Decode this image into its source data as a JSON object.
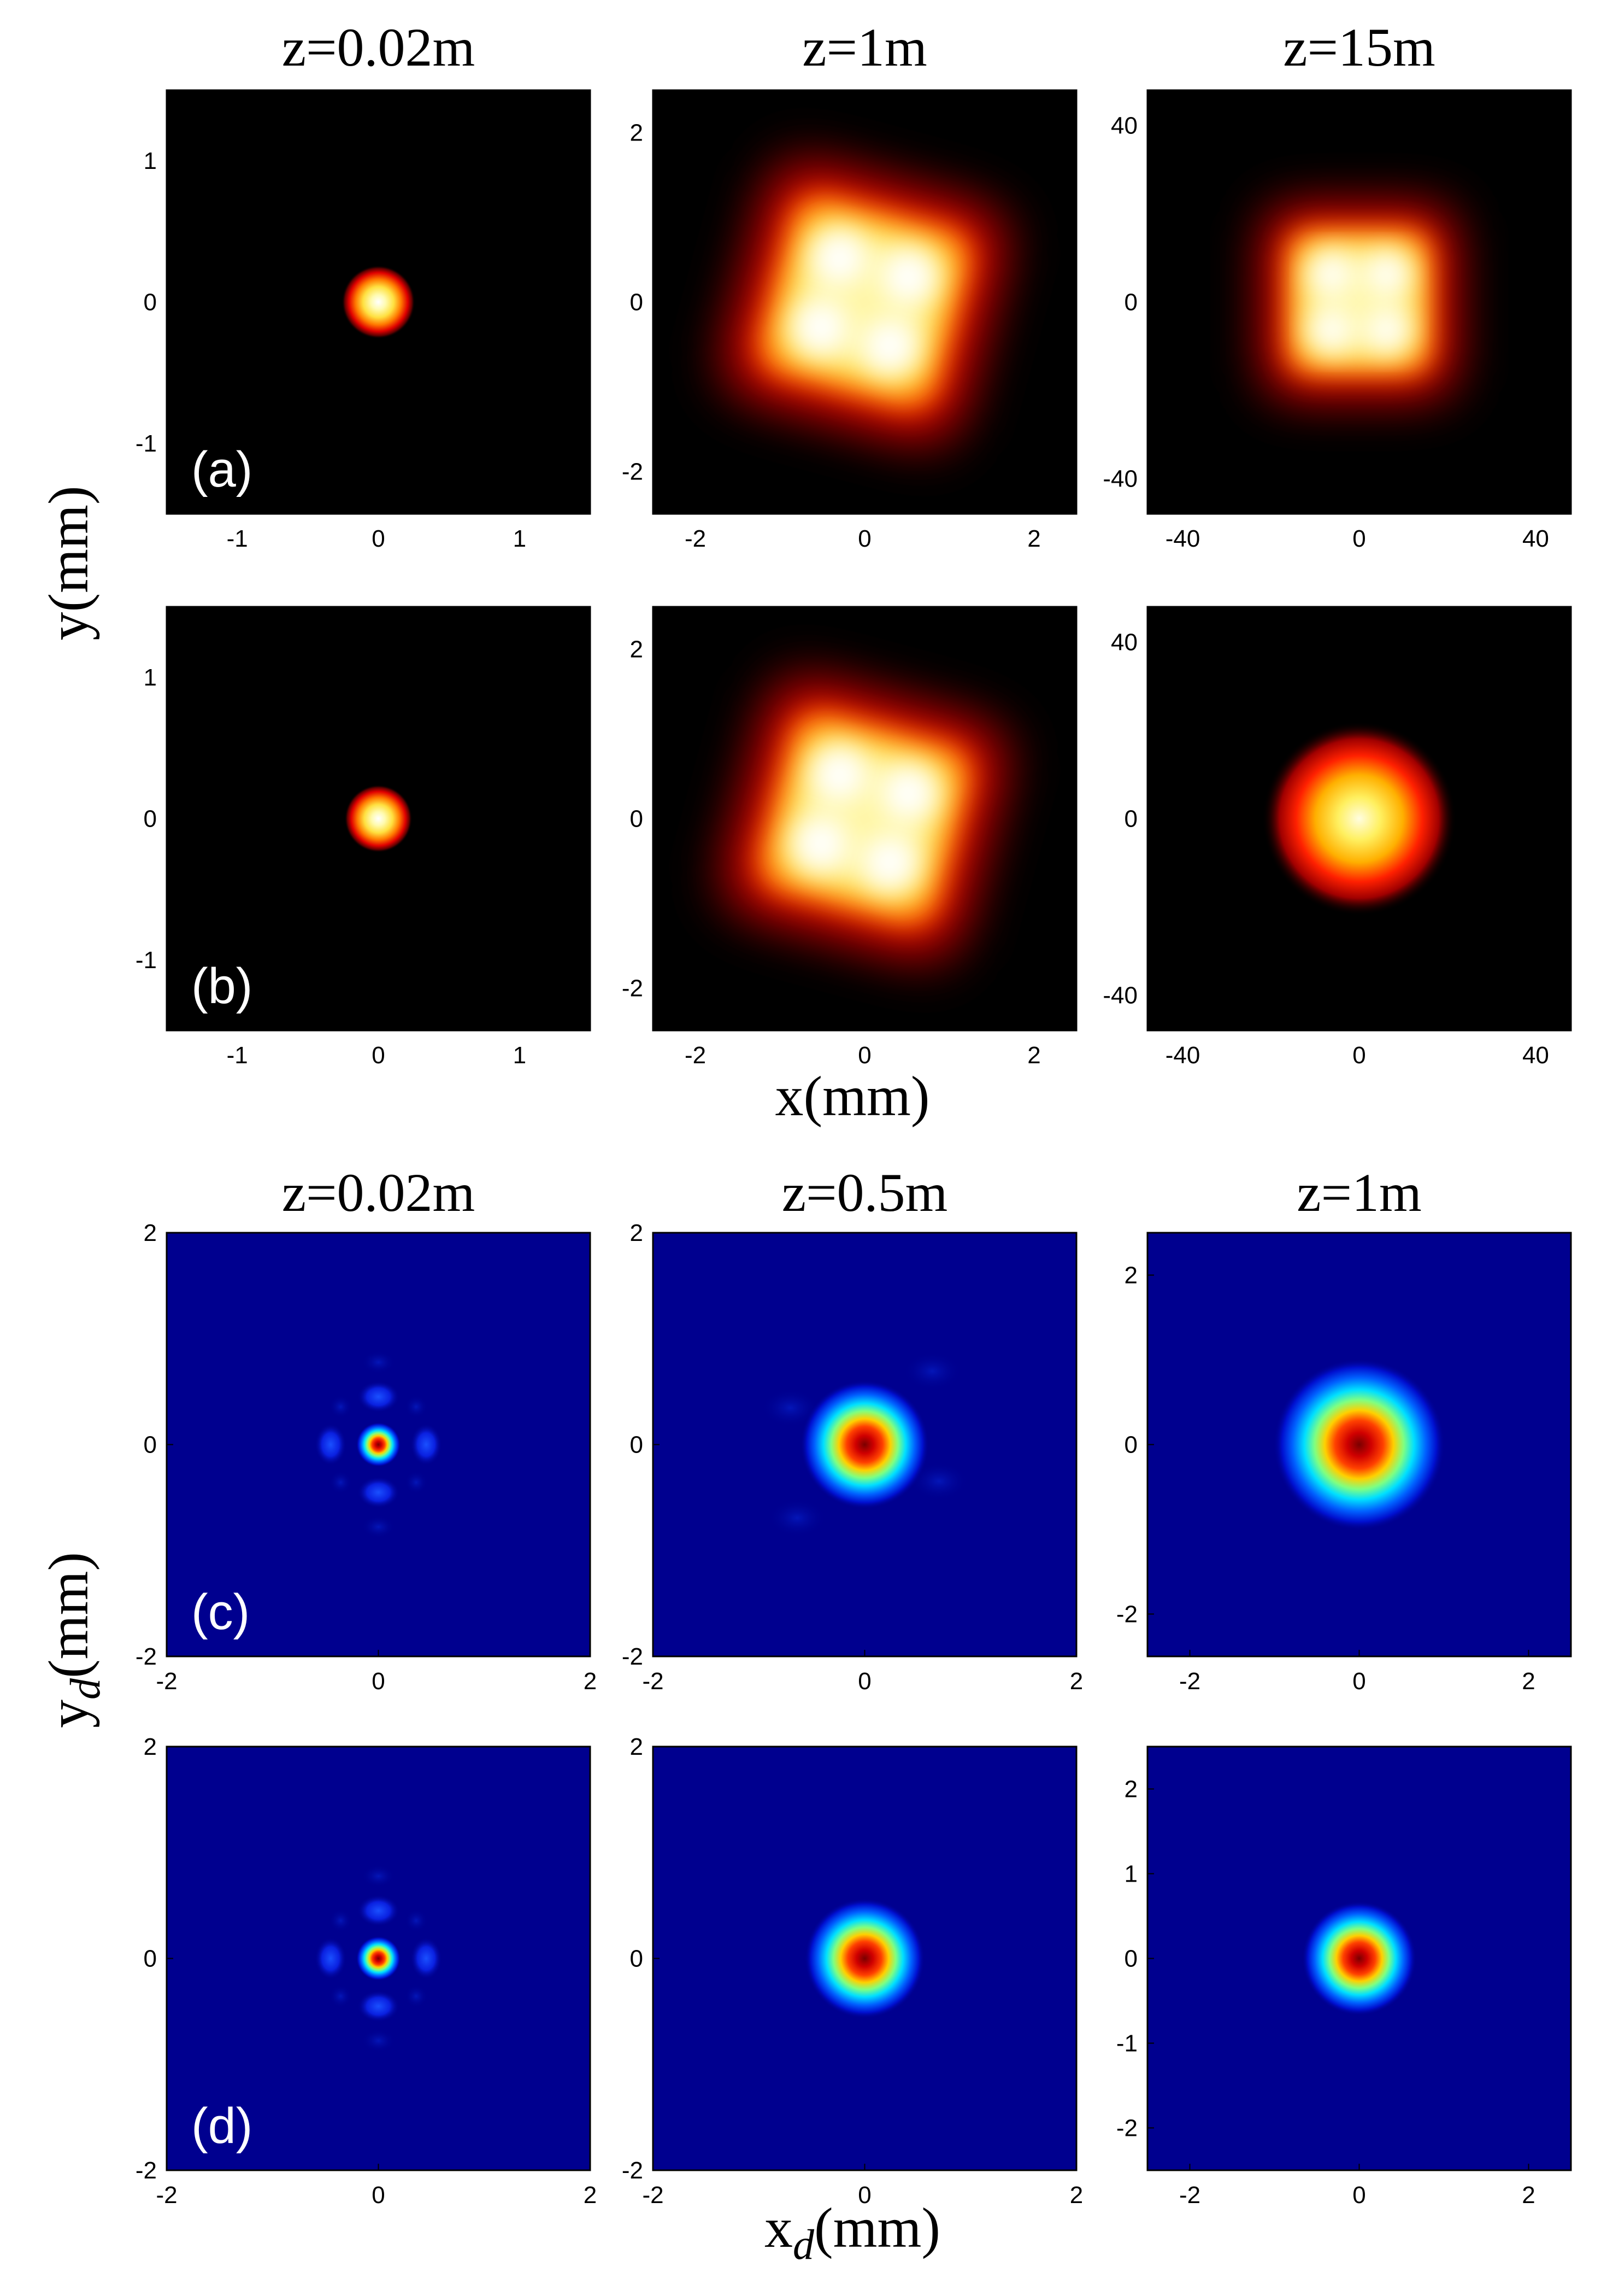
{
  "figure": {
    "upper_ylabel": "y(mm)",
    "upper_xlabel": "x(mm)",
    "lower_ylabel_main": "y",
    "lower_ylabel_sub": "d",
    "lower_ylabel_unit": "(mm)",
    "lower_xlabel_main": "x",
    "lower_xlabel_sub": "d",
    "lower_xlabel_unit": "(mm)"
  },
  "colors": {
    "hot_background": "#000000",
    "hot_ramp": [
      "#000000",
      "#8a0000",
      "#ff0000",
      "#ff8c00",
      "#ffff40",
      "#ffffff"
    ],
    "jet_background": "#00008f",
    "jet_ramp": [
      "#00008f",
      "#0000ff",
      "#00ffff",
      "#ffff00",
      "#ff0000",
      "#800000"
    ]
  },
  "chart_data": [
    {
      "type": "heatmap",
      "row": "a",
      "panel_label": "(a)",
      "title": "z=0.02m",
      "colormap": "hot",
      "xlim": [
        -1.5,
        1.5
      ],
      "ylim": [
        -1.5,
        1.5
      ],
      "xticks": [
        "-1",
        "0",
        "1"
      ],
      "xtick_values": [
        -1,
        0,
        1
      ],
      "yticks": [
        "1",
        "0",
        "-1"
      ],
      "ytick_values": [
        1,
        0,
        -1
      ],
      "pattern": {
        "shape": "gaussian",
        "center": [
          0,
          0
        ],
        "width": 0.26
      }
    },
    {
      "type": "heatmap",
      "row": "a",
      "title": "z=1m",
      "colormap": "hot",
      "xlim": [
        -2.5,
        2.5
      ],
      "ylim": [
        -2.5,
        2.5
      ],
      "xticks": [
        "-2",
        "0",
        "2"
      ],
      "xtick_values": [
        -2,
        0,
        2
      ],
      "yticks": [
        "2",
        "0",
        "-2"
      ],
      "ytick_values": [
        2,
        0,
        -2
      ],
      "pattern": {
        "shape": "rotated-square-four-lobe",
        "center": [
          0,
          0
        ],
        "half_size": 1.0,
        "rotation_deg": 15
      }
    },
    {
      "type": "heatmap",
      "row": "a",
      "title": "z=15m",
      "colormap": "hot",
      "xlim": [
        -48,
        48
      ],
      "ylim": [
        -48,
        48
      ],
      "xticks": [
        "-40",
        "0",
        "40"
      ],
      "xtick_values": [
        -40,
        0,
        40
      ],
      "yticks": [
        "40",
        "0",
        "-40"
      ],
      "ytick_values": [
        40,
        0,
        -40
      ],
      "pattern": {
        "shape": "square-four-lobe",
        "center": [
          0,
          0
        ],
        "half_size": 15
      }
    },
    {
      "type": "heatmap",
      "row": "b",
      "panel_label": "(b)",
      "colormap": "hot",
      "xlim": [
        -1.5,
        1.5
      ],
      "ylim": [
        -1.5,
        1.5
      ],
      "xticks": [
        "-1",
        "0",
        "1"
      ],
      "xtick_values": [
        -1,
        0,
        1
      ],
      "yticks": [
        "1",
        "0",
        "-1"
      ],
      "ytick_values": [
        1,
        0,
        -1
      ],
      "pattern": {
        "shape": "gaussian",
        "center": [
          0,
          0
        ],
        "width": 0.24
      }
    },
    {
      "type": "heatmap",
      "row": "b",
      "colormap": "hot",
      "xlim": [
        -2.5,
        2.5
      ],
      "ylim": [
        -2.5,
        2.5
      ],
      "xticks": [
        "-2",
        "0",
        "2"
      ],
      "xtick_values": [
        -2,
        0,
        2
      ],
      "yticks": [
        "2",
        "0",
        "-2"
      ],
      "ytick_values": [
        2,
        0,
        -2
      ],
      "pattern": {
        "shape": "rotated-square-four-lobe",
        "center": [
          0,
          0
        ],
        "half_size": 1.0,
        "rotation_deg": 15
      }
    },
    {
      "type": "heatmap",
      "row": "b",
      "colormap": "hot",
      "xlim": [
        -48,
        48
      ],
      "ylim": [
        -48,
        48
      ],
      "xticks": [
        "-40",
        "0",
        "40"
      ],
      "xtick_values": [
        -40,
        0,
        40
      ],
      "yticks": [
        "40",
        "0",
        "-40"
      ],
      "ytick_values": [
        40,
        0,
        -40
      ],
      "pattern": {
        "shape": "gaussian",
        "center": [
          0,
          0
        ],
        "width": 22
      }
    },
    {
      "type": "heatmap",
      "row": "c",
      "panel_label": "(c)",
      "title": "z=0.02m",
      "colormap": "jet",
      "xlim": [
        -2,
        2
      ],
      "ylim": [
        -2,
        2
      ],
      "xticks": [
        "-2",
        "0",
        "2"
      ],
      "xtick_values": [
        -2,
        0,
        2
      ],
      "yticks": [
        "2",
        "0",
        "-2"
      ],
      "ytick_values": [
        2,
        0,
        -2
      ],
      "pattern": {
        "shape": "central-peak-with-sidelobes",
        "center": [
          0,
          0
        ],
        "width": 0.2
      }
    },
    {
      "type": "heatmap",
      "row": "c",
      "title": "z=0.5m",
      "colormap": "jet",
      "xlim": [
        -2,
        2
      ],
      "ylim": [
        -2,
        2
      ],
      "xticks": [
        "-2",
        "0",
        "2"
      ],
      "xtick_values": [
        -2,
        0,
        2
      ],
      "yticks": [
        "2",
        "0",
        "-2"
      ],
      "ytick_values": [
        2,
        0,
        -2
      ],
      "pattern": {
        "shape": "gaussian-faint-sidelobes",
        "center": [
          0,
          0
        ],
        "width": 0.45
      }
    },
    {
      "type": "heatmap",
      "row": "c",
      "title": "z=1m",
      "colormap": "jet",
      "xlim": [
        -2.5,
        2.5
      ],
      "ylim": [
        -2.5,
        2.5
      ],
      "xticks": [
        "-2",
        "0",
        "2"
      ],
      "xtick_values": [
        -2,
        0,
        2
      ],
      "yticks": [
        "2",
        "0",
        "-2"
      ],
      "ytick_values": [
        2,
        0,
        -2
      ],
      "pattern": {
        "shape": "gaussian",
        "center": [
          0,
          0
        ],
        "width": 0.75
      }
    },
    {
      "type": "heatmap",
      "row": "d",
      "panel_label": "(d)",
      "colormap": "jet",
      "xlim": [
        -2,
        2
      ],
      "ylim": [
        -2,
        2
      ],
      "xticks": [
        "-2",
        "0",
        "2"
      ],
      "xtick_values": [
        -2,
        0,
        2
      ],
      "yticks": [
        "2",
        "0",
        "-2"
      ],
      "ytick_values": [
        2,
        0,
        -2
      ],
      "pattern": {
        "shape": "central-peak-with-sidelobes",
        "center": [
          0,
          0
        ],
        "width": 0.2
      }
    },
    {
      "type": "heatmap",
      "row": "d",
      "colormap": "jet",
      "xlim": [
        -2,
        2
      ],
      "ylim": [
        -2,
        2
      ],
      "xticks": [
        "-2",
        "0",
        "2"
      ],
      "xtick_values": [
        -2,
        0,
        2
      ],
      "yticks": [
        "2",
        "0",
        "-2"
      ],
      "ytick_values": [
        2,
        0,
        -2
      ],
      "pattern": {
        "shape": "gaussian",
        "center": [
          0,
          0
        ],
        "width": 0.42
      }
    },
    {
      "type": "heatmap",
      "row": "d",
      "colormap": "jet",
      "xlim": [
        -2.5,
        2.5
      ],
      "ylim": [
        -2.5,
        2.5
      ],
      "xticks": [
        "-2",
        "0",
        "2"
      ],
      "xtick_values": [
        -2,
        0,
        2
      ],
      "yticks": [
        "2",
        "1",
        "0",
        "-1",
        "-2"
      ],
      "ytick_values": [
        2,
        1,
        0,
        -1,
        -2
      ],
      "pattern": {
        "shape": "gaussian",
        "center": [
          0,
          0
        ],
        "width": 0.5
      }
    }
  ]
}
